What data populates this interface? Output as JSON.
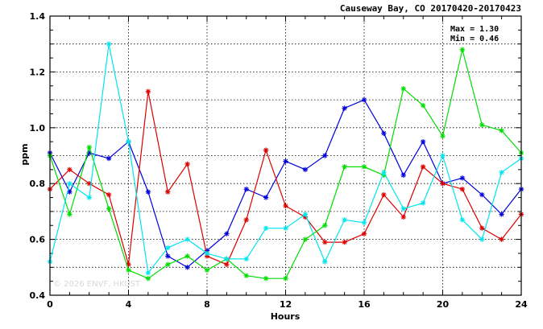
{
  "chart_data": {
    "type": "line",
    "title": "Causeway Bay, CO 20170420-20170423",
    "xlabel": "Hours",
    "ylabel": "ppm",
    "xlim": [
      0,
      24
    ],
    "ylim": [
      0.4,
      1.4
    ],
    "xticks": [
      0,
      4,
      8,
      12,
      16,
      20,
      24
    ],
    "yticks": [
      0.4,
      0.6,
      0.8,
      1.0,
      1.2,
      1.4
    ],
    "ytick_labels": [
      "0.4",
      "0.6",
      "0.8",
      "1.0",
      "1.2",
      "1.4"
    ],
    "grid": true,
    "stats": {
      "max": "Max = 1.30",
      "min": "Min = 0.46"
    },
    "watermark": "© 2026 ENVF, HKUST",
    "x": [
      0,
      1,
      2,
      3,
      4,
      5,
      6,
      7,
      8,
      9,
      10,
      11,
      12,
      13,
      14,
      15,
      16,
      17,
      18,
      19,
      20,
      21,
      22,
      23,
      24
    ],
    "series": [
      {
        "color": "#0000dd",
        "values": [
          0.91,
          0.77,
          0.91,
          0.89,
          0.95,
          0.77,
          0.54,
          0.5,
          0.56,
          0.62,
          0.78,
          0.75,
          0.88,
          0.85,
          0.9,
          1.07,
          1.1,
          0.98,
          0.83,
          0.95,
          0.8,
          0.82,
          0.76,
          0.69,
          0.78
        ]
      },
      {
        "color": "#dd0000",
        "values": [
          0.78,
          0.85,
          0.8,
          0.76,
          0.51,
          1.13,
          0.77,
          0.87,
          0.54,
          0.51,
          0.67,
          0.92,
          0.72,
          0.68,
          0.59,
          0.59,
          0.62,
          0.76,
          0.68,
          0.86,
          0.8,
          0.78,
          0.64,
          0.6,
          0.69
        ]
      },
      {
        "color": "#00dd00",
        "values": [
          0.9,
          0.69,
          0.93,
          0.71,
          0.49,
          0.46,
          0.51,
          0.54,
          0.49,
          0.53,
          0.47,
          0.46,
          0.46,
          0.6,
          0.65,
          0.86,
          0.86,
          0.83,
          1.14,
          1.08,
          0.97,
          1.28,
          1.01,
          0.99,
          0.91
        ]
      },
      {
        "color": "#00e5ee",
        "values": [
          0.52,
          0.8,
          0.75,
          1.3,
          0.95,
          0.48,
          0.57,
          0.6,
          0.55,
          0.53,
          0.53,
          0.64,
          0.64,
          0.69,
          0.52,
          0.67,
          0.66,
          0.84,
          0.71,
          0.73,
          0.9,
          0.67,
          0.6,
          0.84,
          0.89
        ]
      }
    ]
  }
}
